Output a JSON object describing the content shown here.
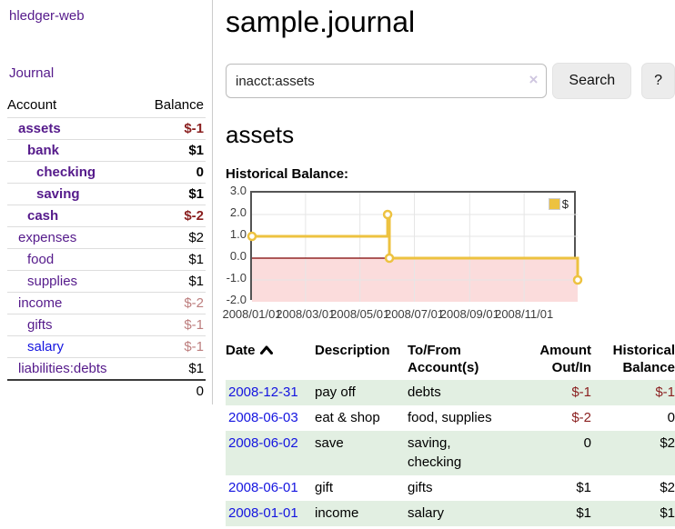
{
  "app": {
    "title": "hledger-web"
  },
  "sidebar": {
    "journal_label": "Journal",
    "accounts": {
      "account_header": "Account",
      "balance_header": "Balance",
      "rows": [
        {
          "name": "assets",
          "balance": "$-1",
          "indent": 1,
          "bold": true,
          "negative": true,
          "link_color": "purple"
        },
        {
          "name": "bank",
          "balance": "$1",
          "indent": 2,
          "bold": true,
          "negative": false,
          "link_color": "purple"
        },
        {
          "name": "checking",
          "balance": "0",
          "indent": 3,
          "bold": true,
          "negative": false,
          "link_color": "purple"
        },
        {
          "name": "saving",
          "balance": "$1",
          "indent": 3,
          "bold": true,
          "negative": false,
          "link_color": "purple"
        },
        {
          "name": "cash",
          "balance": "$-2",
          "indent": 2,
          "bold": true,
          "negative": true,
          "link_color": "purple"
        },
        {
          "name": "expenses",
          "balance": "$2",
          "indent": 1,
          "bold": false,
          "negative": false,
          "link_color": "purple"
        },
        {
          "name": "food",
          "balance": "$1",
          "indent": 2,
          "bold": false,
          "negative": false,
          "link_color": "purple"
        },
        {
          "name": "supplies",
          "balance": "$1",
          "indent": 2,
          "bold": false,
          "negative": false,
          "link_color": "purple"
        },
        {
          "name": "income",
          "balance": "$-2",
          "indent": 1,
          "bold": false,
          "negative": true,
          "link_color": "purple"
        },
        {
          "name": "gifts",
          "balance": "$-1",
          "indent": 2,
          "bold": false,
          "negative": true,
          "link_color": "purple"
        },
        {
          "name": "salary",
          "balance": "$-1",
          "indent": 2,
          "bold": false,
          "negative": true,
          "link_color": "blue"
        },
        {
          "name": "liabilities:debts",
          "balance": "$1",
          "indent": 1,
          "bold": false,
          "negative": false,
          "link_color": "purple"
        }
      ],
      "total": "0"
    }
  },
  "main": {
    "title": "sample.journal",
    "search": {
      "value": "inacct:assets",
      "clear_icon": "×",
      "button_label": "Search",
      "help_label": "?"
    },
    "account_heading": "assets",
    "chart_label": "Historical Balance:"
  },
  "chart_data": {
    "type": "line",
    "title": "Historical Balance",
    "series": [
      {
        "name": "$",
        "color": "#EDC240",
        "step": true,
        "points": [
          {
            "x": "2008-01-01",
            "y": 1
          },
          {
            "x": "2008-06-01",
            "y": 2
          },
          {
            "x": "2008-06-03",
            "y": 0
          },
          {
            "x": "2008-12-31",
            "y": -1
          }
        ]
      }
    ],
    "xlim": [
      "2008-01-01",
      "2008-12-31"
    ],
    "ylim": [
      -2,
      3
    ],
    "x_ticks": [
      {
        "x": "2008-01-01",
        "label": "2008/01/01"
      },
      {
        "x": "2008-03-01",
        "label": "2008/03/01"
      },
      {
        "x": "2008-05-01",
        "label": "2008/05/01"
      },
      {
        "x": "2008-07-01",
        "label": "2008/07/01"
      },
      {
        "x": "2008-09-01",
        "label": "2008/09/01"
      },
      {
        "x": "2008-11-01",
        "label": "2008/11/01"
      }
    ],
    "y_ticks": [
      {
        "y": 3,
        "label": "3.0"
      },
      {
        "y": 2,
        "label": "2.0"
      },
      {
        "y": 1,
        "label": "1.0"
      },
      {
        "y": 0,
        "label": "0.0"
      },
      {
        "y": -1,
        "label": "-1.0"
      },
      {
        "y": -2,
        "label": "-2.0"
      }
    ],
    "legend": {
      "label": "$",
      "position": "top-right"
    },
    "grid": true,
    "gridline_color": "#e6e6e6",
    "negative_region": {
      "from": -2,
      "to": 0,
      "color": "#fbdcdc"
    },
    "zero_line_color": "#7d0000"
  },
  "register": {
    "headers": {
      "date": "Date",
      "description": "Description",
      "accounts": "To/From Account(s)",
      "amount": "Amount Out/In",
      "balance": "Historical Balance"
    },
    "sort": {
      "column": "date",
      "direction": "ascending"
    },
    "rows": [
      {
        "date": "2008-12-31",
        "description": "pay off",
        "accounts": "debts",
        "amount": "$-1",
        "amount_negative": true,
        "balance": "$-1",
        "balance_negative": true
      },
      {
        "date": "2008-06-03",
        "description": "eat & shop",
        "accounts": "food, supplies",
        "amount": "$-2",
        "amount_negative": true,
        "balance": "0",
        "balance_negative": false
      },
      {
        "date": "2008-06-02",
        "description": "save",
        "accounts": "saving, checking",
        "amount": "0",
        "amount_negative": false,
        "balance": "$2",
        "balance_negative": false
      },
      {
        "date": "2008-06-01",
        "description": "gift",
        "accounts": "gifts",
        "amount": "$1",
        "amount_negative": false,
        "balance": "$2",
        "balance_negative": false
      },
      {
        "date": "2008-01-01",
        "description": "income",
        "accounts": "salary",
        "amount": "$1",
        "amount_negative": false,
        "balance": "$1",
        "balance_negative": false
      }
    ]
  },
  "colors": {
    "link_purple": "#551A8B",
    "link_blue": "#1414E0",
    "negative_strong": "#8a1f1f",
    "negative_faded": "#bd7e7e",
    "row_stripe_green": "#e2efe2",
    "chart_line": "#EDC240",
    "chart_negative_region": "#fbdcdc",
    "chart_zero_line": "#7d0000"
  }
}
